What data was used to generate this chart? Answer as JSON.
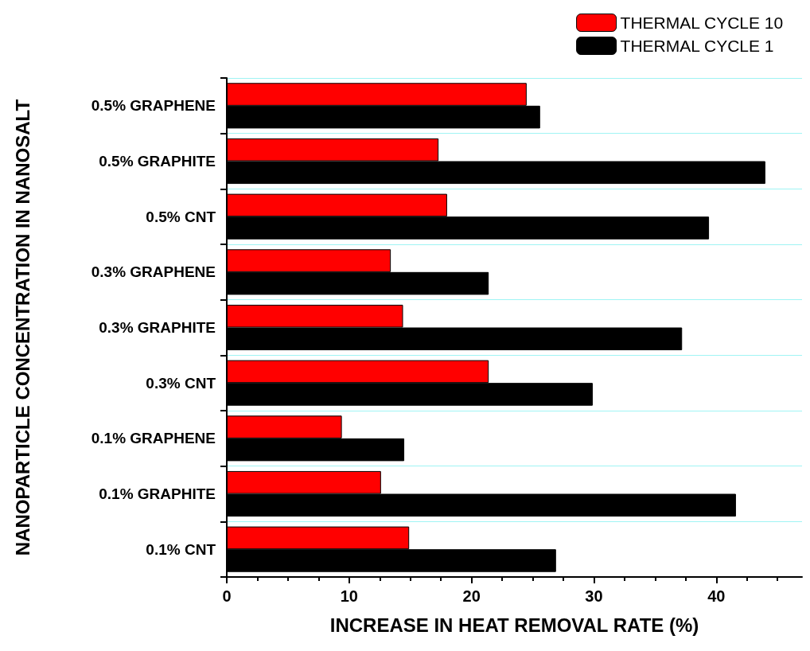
{
  "chart_data": {
    "type": "bar",
    "orientation": "horizontal",
    "xlabel": "INCREASE IN HEAT REMOVAL RATE (%)",
    "ylabel": "NANOPARTICLE CONCENTRATION IN NANOSALT",
    "categories": [
      "0.5% GRAPHENE",
      "0.5% GRAPHITE",
      "0.5% CNT",
      "0.3% GRAPHENE",
      "0.3% GRAPHITE",
      "0.3% CNT",
      "0.1% GRAPHENE",
      "0.1% GRAPHITE",
      "0.1% CNT"
    ],
    "series": [
      {
        "name": "THERMAL CYCLE 10",
        "color": "#ff0000",
        "values": [
          24.5,
          17.3,
          18.0,
          13.4,
          14.4,
          21.4,
          9.4,
          12.6,
          14.9
        ]
      },
      {
        "name": "THERMAL CYCLE 1",
        "color": "#000000",
        "values": [
          25.6,
          44.0,
          39.4,
          21.4,
          37.2,
          29.9,
          14.5,
          41.6,
          26.9
        ]
      }
    ],
    "xlim": [
      0,
      47
    ],
    "xticks": [
      0,
      10,
      20,
      30,
      40
    ],
    "grid": "y",
    "legend": "top right"
  }
}
